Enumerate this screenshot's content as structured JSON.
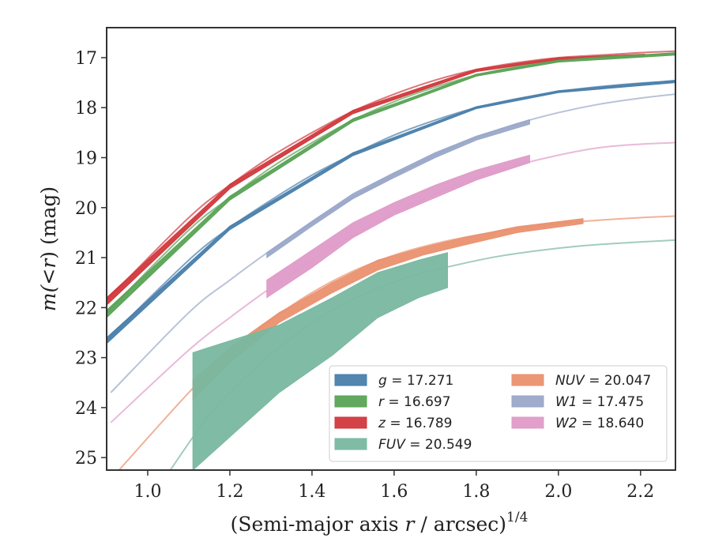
{
  "chart_data": {
    "type": "line",
    "xlabel_main": "(Semi-major axis ",
    "xlabel_var": "r",
    "xlabel_tail": " / arcsec)",
    "xlabel_sup": "1/4",
    "ylabel_m": "m",
    "ylabel_mid": "(<",
    "ylabel_r": "r",
    "ylabel_tail": ") (mag)",
    "xlim": [
      0.9,
      2.285
    ],
    "ylim": [
      25.25,
      16.4
    ],
    "inverted_y": true,
    "grid": false,
    "legend_placement": "lower-right",
    "x_ticks": [
      1.0,
      1.2,
      1.4,
      1.6,
      1.8,
      2.0,
      2.2
    ],
    "x_tick_labels": [
      "1.0",
      "1.2",
      "1.4",
      "1.6",
      "1.8",
      "2.0",
      "2.2"
    ],
    "y_ticks": [
      17,
      18,
      19,
      20,
      21,
      22,
      23,
      24,
      25
    ],
    "y_tick_labels": [
      "17",
      "18",
      "19",
      "20",
      "21",
      "22",
      "23",
      "24",
      "25"
    ],
    "series": [
      {
        "key": "z",
        "name": "z",
        "value_label": "= 16.789",
        "color": "#d1383c",
        "model": {
          "x": [
            0.9,
            1.1,
            1.2,
            1.3,
            1.4,
            1.5,
            1.6,
            1.7,
            1.8,
            1.9,
            2.0,
            2.1,
            2.2,
            2.285
          ],
          "y": [
            21.85,
            20.2,
            19.55,
            18.98,
            18.5,
            18.07,
            17.73,
            17.45,
            17.24,
            17.1,
            17.0,
            16.95,
            16.9,
            16.87
          ]
        },
        "data": {
          "x": [
            0.9,
            1.2,
            1.5,
            1.8,
            2.0,
            2.21
          ],
          "lo": [
            21.8,
            19.53,
            18.05,
            17.23,
            17.0,
            16.93
          ],
          "hi": [
            21.95,
            19.62,
            18.12,
            17.28,
            17.04,
            16.97
          ]
        }
      },
      {
        "key": "r",
        "name": "r",
        "value_label": "= 16.697",
        "color": "#5aa356",
        "model": {
          "x": [
            0.9,
            1.1,
            1.2,
            1.3,
            1.4,
            1.5,
            1.6,
            1.7,
            1.8,
            1.9,
            2.0,
            2.1,
            2.2,
            2.285
          ],
          "y": [
            22.1,
            20.45,
            19.8,
            19.2,
            18.7,
            18.25,
            17.88,
            17.59,
            17.35,
            17.18,
            17.07,
            16.99,
            16.95,
            16.92
          ]
        },
        "data": {
          "x": [
            0.9,
            1.2,
            1.5,
            1.8,
            2.0,
            2.285
          ],
          "lo": [
            22.05,
            19.77,
            18.22,
            17.33,
            17.05,
            16.9
          ],
          "hi": [
            22.2,
            19.85,
            18.28,
            17.37,
            17.09,
            16.95
          ]
        }
      },
      {
        "key": "g",
        "name": "g",
        "value_label": "= 17.271",
        "color": "#4a7fab",
        "model": {
          "x": [
            0.9,
            1.1,
            1.2,
            1.3,
            1.4,
            1.5,
            1.6,
            1.7,
            1.8,
            1.9,
            2.0,
            2.1,
            2.2,
            2.285
          ],
          "y": [
            22.65,
            21.05,
            20.4,
            19.85,
            19.35,
            18.93,
            18.55,
            18.25,
            18.0,
            17.82,
            17.68,
            17.58,
            17.51,
            17.47
          ]
        },
        "data": {
          "x": [
            0.9,
            1.2,
            1.5,
            1.8,
            2.0,
            2.285
          ],
          "lo": [
            22.6,
            20.37,
            18.9,
            17.98,
            17.66,
            17.45
          ],
          "hi": [
            22.72,
            20.44,
            18.96,
            18.02,
            17.7,
            17.5
          ]
        }
      },
      {
        "key": "W1",
        "name": "W1",
        "value_label": "= 17.475",
        "color": "#9aa8c9",
        "model": {
          "x": [
            0.91,
            1.1,
            1.2,
            1.3,
            1.4,
            1.5,
            1.6,
            1.7,
            1.8,
            1.9,
            2.0,
            2.1,
            2.2,
            2.285
          ],
          "y": [
            23.7,
            22.1,
            21.45,
            20.85,
            20.3,
            19.8,
            19.35,
            18.95,
            18.6,
            18.32,
            18.1,
            17.93,
            17.81,
            17.73
          ]
        },
        "data": {
          "x": [
            1.29,
            1.4,
            1.5,
            1.6,
            1.7,
            1.8,
            1.93
          ],
          "lo": [
            20.9,
            20.27,
            19.72,
            19.3,
            18.9,
            18.57,
            18.24
          ],
          "hi": [
            21.0,
            20.37,
            19.82,
            19.4,
            19.0,
            18.65,
            18.33
          ]
        }
      },
      {
        "key": "W2",
        "name": "W2",
        "value_label": "= 18.640",
        "color": "#df9bc8",
        "model": {
          "x": [
            0.91,
            1.1,
            1.2,
            1.3,
            1.4,
            1.5,
            1.6,
            1.7,
            1.8,
            1.9,
            2.0,
            2.1,
            2.2,
            2.285
          ],
          "y": [
            24.3,
            22.85,
            22.2,
            21.6,
            21.05,
            20.55,
            20.1,
            19.72,
            19.4,
            19.15,
            18.95,
            18.8,
            18.73,
            18.7
          ]
        },
        "data": {
          "x": [
            1.29,
            1.4,
            1.5,
            1.6,
            1.7,
            1.8,
            1.93
          ],
          "lo": [
            21.45,
            20.85,
            20.3,
            19.9,
            19.55,
            19.25,
            18.95
          ],
          "hi": [
            21.8,
            21.2,
            20.6,
            20.15,
            19.8,
            19.45,
            19.1
          ]
        }
      },
      {
        "key": "NUV",
        "name": "NUV",
        "value_label": "= 20.047",
        "color": "#ea916f",
        "model": {
          "x": [
            0.93,
            1.1,
            1.2,
            1.3,
            1.4,
            1.5,
            1.6,
            1.7,
            1.8,
            1.9,
            2.0,
            2.1,
            2.2,
            2.285
          ],
          "y": [
            25.25,
            23.7,
            22.9,
            22.25,
            21.7,
            21.27,
            20.95,
            20.72,
            20.55,
            20.42,
            20.32,
            20.25,
            20.2,
            20.17
          ]
        },
        "data": {
          "x": [
            1.11,
            1.2,
            1.32,
            1.45,
            1.56,
            1.67,
            1.77,
            1.9,
            2.06
          ],
          "lo": [
            23.45,
            22.8,
            22.1,
            21.5,
            21.05,
            20.8,
            20.6,
            20.38,
            20.22
          ],
          "hi": [
            23.85,
            23.1,
            22.3,
            21.7,
            21.25,
            20.95,
            20.75,
            20.5,
            20.32
          ]
        }
      },
      {
        "key": "FUV",
        "name": "FUV",
        "value_label": "= 20.549",
        "color": "#79b8a0",
        "model": {
          "x": [
            1.055,
            1.15,
            1.25,
            1.35,
            1.45,
            1.55,
            1.65,
            1.75,
            1.85,
            1.95,
            2.05,
            2.15,
            2.285
          ],
          "y": [
            25.25,
            24.15,
            23.3,
            22.6,
            22.05,
            21.65,
            21.35,
            21.15,
            20.98,
            20.86,
            20.77,
            20.71,
            20.65
          ]
        },
        "data": {
          "x": [
            1.11,
            1.32,
            1.45,
            1.56,
            1.66,
            1.73
          ],
          "lo": [
            22.9,
            22.35,
            21.8,
            21.3,
            21.05,
            20.9
          ],
          "hi": [
            25.25,
            23.7,
            22.95,
            22.2,
            21.8,
            21.6
          ]
        }
      }
    ],
    "legend_order": [
      "g",
      "r",
      "z",
      "FUV",
      "NUV",
      "W1",
      "W2"
    ]
  }
}
